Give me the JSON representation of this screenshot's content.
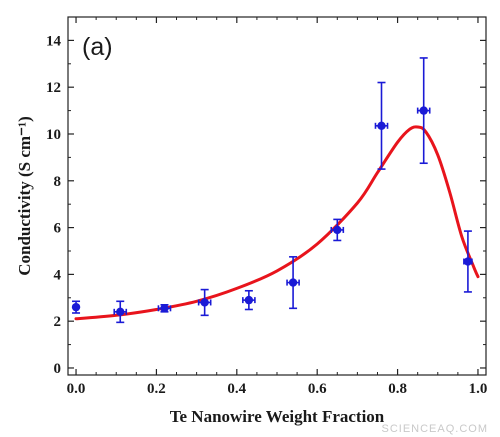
{
  "panel_label": "(a)",
  "watermark": "SCIENCEAQ.COM",
  "colors": {
    "fit_line": "#e8141c",
    "markers": "#1a1ad6",
    "axes": "#222222"
  },
  "chart_data": {
    "type": "scatter",
    "xlabel": "Te Nanowire Weight Fraction",
    "ylabel": "Conductivity (S cm⁻¹)",
    "xlim": [
      -0.02,
      1.02
    ],
    "ylim": [
      -0.3,
      15.0
    ],
    "xticks": [
      0.0,
      0.2,
      0.4,
      0.6,
      0.8,
      1.0
    ],
    "xtick_labels": [
      "0.0",
      "0.2",
      "0.4",
      "0.6",
      "0.8",
      "1.0"
    ],
    "yticks": [
      0,
      2,
      4,
      6,
      8,
      10,
      12,
      14
    ],
    "ytick_labels": [
      "0",
      "2",
      "4",
      "6",
      "8",
      "10",
      "12",
      "14"
    ],
    "grid": false,
    "series": [
      {
        "kind": "points-with-error-bars",
        "points": [
          {
            "x": 0.0,
            "y": 2.6,
            "yerr": 0.25,
            "xerr": 0.0
          },
          {
            "x": 0.11,
            "y": 2.4,
            "yerr": 0.45,
            "xerr": 0.015
          },
          {
            "x": 0.22,
            "y": 2.55,
            "yerr": 0.15,
            "xerr": 0.015
          },
          {
            "x": 0.32,
            "y": 2.8,
            "yerr": 0.55,
            "xerr": 0.015
          },
          {
            "x": 0.43,
            "y": 2.9,
            "yerr": 0.4,
            "xerr": 0.015
          },
          {
            "x": 0.54,
            "y": 3.65,
            "yerr": 1.1,
            "xerr": 0.015
          },
          {
            "x": 0.65,
            "y": 5.9,
            "yerr": 0.45,
            "xerr": 0.015
          },
          {
            "x": 0.76,
            "y": 10.35,
            "yerr": 1.85,
            "xerr": 0.015
          },
          {
            "x": 0.865,
            "y": 11.0,
            "yerr": 2.25,
            "xerr": 0.015
          },
          {
            "x": 0.975,
            "y": 4.55,
            "yerr": 1.3,
            "xerr": 0.01
          }
        ]
      },
      {
        "kind": "fit-curve",
        "points": [
          {
            "x": 0.0,
            "y": 2.1
          },
          {
            "x": 0.1,
            "y": 2.25
          },
          {
            "x": 0.2,
            "y": 2.5
          },
          {
            "x": 0.3,
            "y": 2.85
          },
          {
            "x": 0.4,
            "y": 3.4
          },
          {
            "x": 0.5,
            "y": 4.15
          },
          {
            "x": 0.6,
            "y": 5.3
          },
          {
            "x": 0.7,
            "y": 7.05
          },
          {
            "x": 0.75,
            "y": 8.35
          },
          {
            "x": 0.8,
            "y": 9.65
          },
          {
            "x": 0.83,
            "y": 10.2
          },
          {
            "x": 0.85,
            "y": 10.3
          },
          {
            "x": 0.87,
            "y": 10.1
          },
          {
            "x": 0.9,
            "y": 9.1
          },
          {
            "x": 0.93,
            "y": 7.5
          },
          {
            "x": 0.96,
            "y": 5.6
          },
          {
            "x": 0.99,
            "y": 4.3
          },
          {
            "x": 1.0,
            "y": 3.9
          }
        ]
      }
    ]
  }
}
